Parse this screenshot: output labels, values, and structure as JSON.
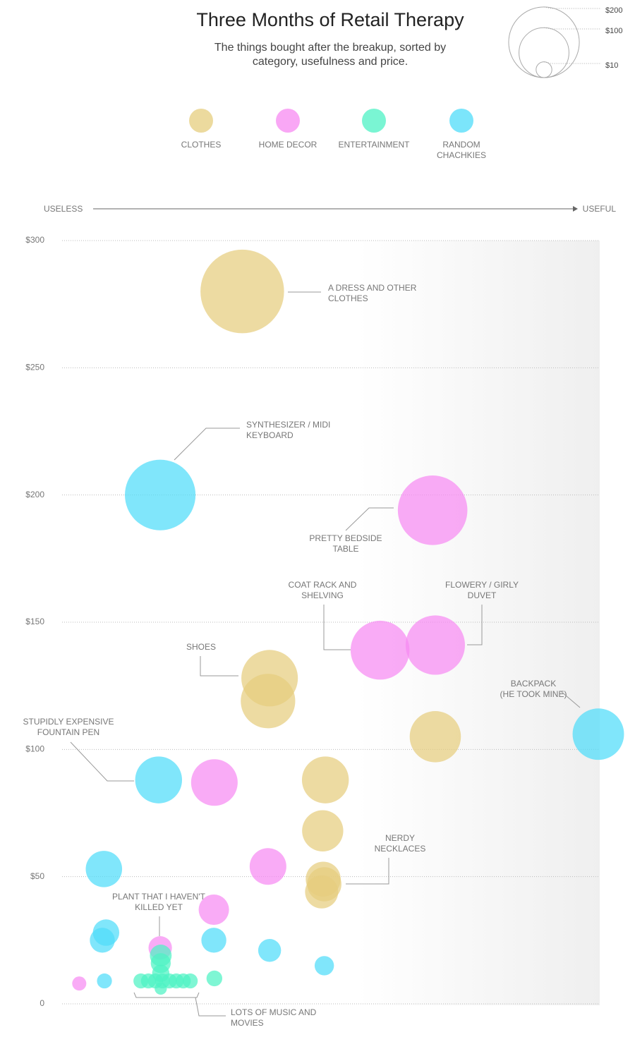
{
  "chart_data": {
    "type": "bubble",
    "title": "Three Months of Retail Therapy",
    "subtitle": [
      "The things bought after the breakup, sorted by",
      "category, usefulness and price."
    ],
    "x_label_left": "USELESS",
    "x_label_right": "USEFUL",
    "xlim": [
      0,
      100
    ],
    "ylim": [
      0,
      300
    ],
    "yticks": [
      0,
      {
        "value": 50,
        "label": "$50"
      },
      {
        "value": 100,
        "label": "$100"
      },
      {
        "value": 150,
        "label": "$150"
      },
      {
        "value": 200,
        "label": "$200"
      },
      {
        "value": 250,
        "label": "$250"
      },
      {
        "value": 300,
        "label": "$300"
      }
    ],
    "grid": true,
    "size_legend": [
      {
        "value": 200,
        "label": "$200"
      },
      {
        "value": 100,
        "label": "$100"
      },
      {
        "value": 10,
        "label": "$10"
      }
    ],
    "series": [
      {
        "name": "CLOTHES",
        "color": "#e6cd7e",
        "x": [
          33.6,
          38.7,
          38.4,
          69.6,
          49.1,
          48.6,
          48.7,
          48.9,
          48.4
        ],
        "values": [
          280,
          128,
          119,
          105,
          88,
          68,
          49,
          47,
          44
        ]
      },
      {
        "name": "HOME DECOR",
        "color": "#f78af2",
        "x": [
          69.1,
          59.3,
          69.6,
          28.4,
          38.4,
          28.3,
          18.3,
          3.2
        ],
        "values": [
          194,
          139,
          141,
          87,
          54,
          37,
          22,
          8
        ]
      },
      {
        "name": "ENTERTAINMENT",
        "color": "#4df2c4",
        "x": [
          14.7,
          16.1,
          17.4,
          18.7,
          20,
          21.3,
          22.6,
          23.9,
          18.4,
          18.4,
          18.4,
          18.4,
          28.4
        ],
        "values": [
          9,
          9,
          9,
          9,
          9,
          9,
          9,
          9,
          19,
          16,
          12,
          6,
          10
        ]
      },
      {
        "name": "RANDOM CHACHKIES",
        "color": "#4fdcf9",
        "x": [
          18.3,
          100,
          18,
          7.8,
          8.2,
          7.5,
          28.3,
          38.7,
          48.9,
          7.9
        ],
        "values": [
          200,
          106,
          88,
          53,
          28,
          25,
          25,
          21,
          15,
          9
        ]
      }
    ],
    "annotations": [
      {
        "text": [
          "A DRESS AND OTHER",
          "CLOTHES"
        ]
      },
      {
        "text": [
          "SYNTHESIZER / MIDI",
          "KEYBOARD"
        ]
      },
      {
        "text": [
          "PRETTY BEDSIDE",
          "TABLE"
        ]
      },
      {
        "text": [
          "COAT RACK AND",
          "SHELVING"
        ]
      },
      {
        "text": [
          "FLOWERY / GIRLY",
          "DUVET"
        ]
      },
      {
        "text": [
          "SHOES"
        ]
      },
      {
        "text": [
          "BACKPACK",
          "(HE TOOK MINE)"
        ]
      },
      {
        "text": [
          "STUPIDLY EXPENSIVE",
          "FOUNTAIN PEN"
        ]
      },
      {
        "text": [
          "NERDY",
          "NECKLACES"
        ]
      },
      {
        "text": [
          "PLANT THAT I HAVEN'T",
          "KILLED YET"
        ]
      },
      {
        "text": [
          "LOTS OF MUSIC AND",
          "MOVIES"
        ]
      }
    ]
  }
}
